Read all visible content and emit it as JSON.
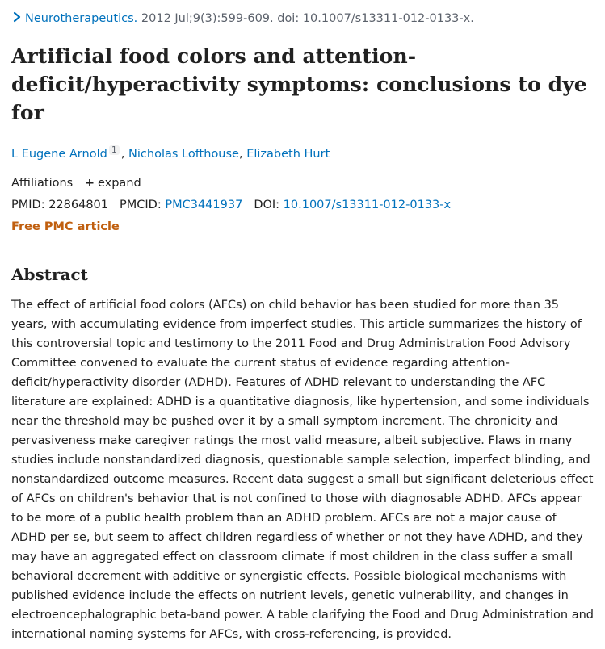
{
  "citation": {
    "journal": "Neurotherapeutics.",
    "details": "2012 Jul;9(3):599-609. doi: 10.1007/s13311-012-0133-x."
  },
  "article": {
    "title": "Artificial food colors and attention-deficit/hyperactivity symptoms: conclusions to dye for"
  },
  "authors": [
    {
      "name": "L Eugene Arnold",
      "affiliation_ref": "1"
    },
    {
      "name": "Nicholas Lofthouse"
    },
    {
      "name": "Elizabeth Hurt"
    }
  ],
  "affiliations": {
    "label": "Affiliations",
    "expand_label": "expand"
  },
  "identifiers": {
    "pmid_label": "PMID:",
    "pmid": "22864801",
    "pmcid_label": "PMCID:",
    "pmcid": "PMC3441937",
    "doi_label": "DOI:",
    "doi": "10.1007/s13311-012-0133-x"
  },
  "free_article_label": "Free PMC article",
  "abstract": {
    "heading": "Abstract",
    "text": "The effect of artificial food colors (AFCs) on child behavior has been studied for more than 35 years, with accumulating evidence from imperfect studies. This article summarizes the history of this controversial topic and testimony to the 2011 Food and Drug Administration Food Advisory Committee convened to evaluate the current status of evidence regarding attention-deficit/hyperactivity disorder (ADHD). Features of ADHD relevant to understanding the AFC literature are explained: ADHD is a quantitative diagnosis, like hypertension, and some individuals near the threshold may be pushed over it by a small symptom increment. The chronicity and pervasiveness make caregiver ratings the most valid measure, albeit subjective. Flaws in many studies include nonstandardized diagnosis, questionable sample selection, imperfect blinding, and nonstandardized outcome measures. Recent data suggest a small but significant deleterious effect of AFCs on children's behavior that is not confined to those with diagnosable ADHD. AFCs appear to be more of a public health problem than an ADHD problem. AFCs are not a major cause of ADHD per se, but seem to affect children regardless of whether or not they have ADHD, and they may have an aggregated effect on classroom climate if most children in the class suffer a small behavioral decrement with additive or synergistic effects. Possible biological mechanisms with published evidence include the effects on nutrient levels, genetic vulnerability, and changes in electroencephalographic beta-band power. A table clarifying the Food and Drug Administration and international naming systems for AFCs, with cross-referencing, is provided."
  },
  "colors": {
    "link": "#0071bc",
    "free_article": "#c05f0f",
    "muted": "#5b616b",
    "text": "#212121"
  }
}
